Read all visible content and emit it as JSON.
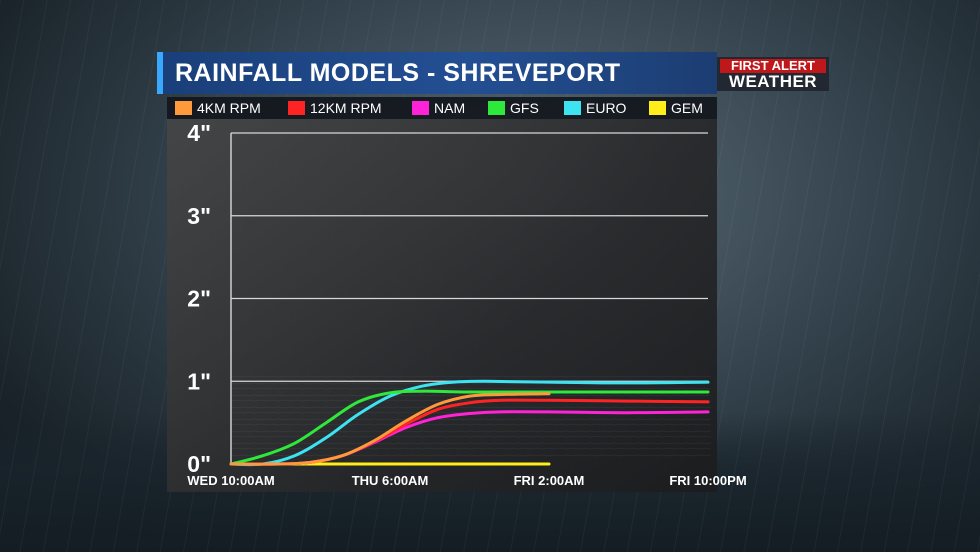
{
  "header": {
    "title": "RAINFALL MODELS - SHREVEPORT",
    "logo": {
      "top": "FIRST ALERT",
      "bottom": "WEATHER"
    }
  },
  "legend": [
    {
      "label": "4KM RPM",
      "color": "#ff9a3c"
    },
    {
      "label": "12KM RPM",
      "color": "#ff2424"
    },
    {
      "label": "NAM",
      "color": "#ff22d6"
    },
    {
      "label": "GFS",
      "color": "#2ee83a"
    },
    {
      "label": "EURO",
      "color": "#3ee3f2"
    },
    {
      "label": "GEM",
      "color": "#ffee1a"
    }
  ],
  "chart_data": {
    "type": "line",
    "title": "RAINFALL MODELS - SHREVEPORT",
    "xlabel": "",
    "ylabel": "",
    "x_ticks": [
      "WED  10:00AM",
      "THU  6:00AM",
      "FRI  2:00AM",
      "FRI  10:00PM"
    ],
    "x_tick_hours": [
      0,
      20,
      40,
      60
    ],
    "y_ticks": [
      "0\"",
      "1\"",
      "2\"",
      "3\"",
      "4\""
    ],
    "y_tick_values": [
      0,
      1,
      2,
      3,
      4
    ],
    "ylim": [
      0,
      4
    ],
    "xlim": [
      0,
      60
    ],
    "grid": true,
    "series": [
      {
        "name": "4KM RPM",
        "color": "#ff9a3c",
        "x": [
          0,
          6,
          10,
          14,
          18,
          22,
          26,
          30,
          34,
          40
        ],
        "y": [
          0,
          0,
          0.02,
          0.1,
          0.28,
          0.52,
          0.72,
          0.82,
          0.84,
          0.85
        ]
      },
      {
        "name": "12KM RPM",
        "color": "#ff2424",
        "x": [
          0,
          6,
          10,
          14,
          18,
          22,
          26,
          30,
          34,
          40,
          50,
          60
        ],
        "y": [
          0,
          0,
          0.02,
          0.1,
          0.27,
          0.48,
          0.66,
          0.74,
          0.77,
          0.77,
          0.76,
          0.75
        ]
      },
      {
        "name": "NAM",
        "color": "#ff22d6",
        "x": [
          0,
          6,
          10,
          14,
          18,
          22,
          26,
          30,
          34,
          40,
          50,
          60
        ],
        "y": [
          0,
          0,
          0.02,
          0.1,
          0.26,
          0.44,
          0.56,
          0.61,
          0.63,
          0.63,
          0.62,
          0.63
        ]
      },
      {
        "name": "GFS",
        "color": "#2ee83a",
        "x": [
          0,
          4,
          8,
          12,
          16,
          20,
          24,
          30,
          40,
          50,
          60
        ],
        "y": [
          0,
          0.1,
          0.25,
          0.5,
          0.75,
          0.86,
          0.88,
          0.87,
          0.87,
          0.87,
          0.87
        ]
      },
      {
        "name": "EURO",
        "color": "#3ee3f2",
        "x": [
          0,
          4,
          8,
          12,
          16,
          20,
          24,
          28,
          32,
          40,
          50,
          60
        ],
        "y": [
          0,
          0,
          0.1,
          0.32,
          0.6,
          0.82,
          0.94,
          0.99,
          1.0,
          0.99,
          0.98,
          0.99
        ]
      },
      {
        "name": "GEM",
        "color": "#ffee1a",
        "x": [
          0,
          10,
          20,
          30,
          40
        ],
        "y": [
          0,
          0,
          0,
          0,
          0
        ]
      }
    ]
  }
}
